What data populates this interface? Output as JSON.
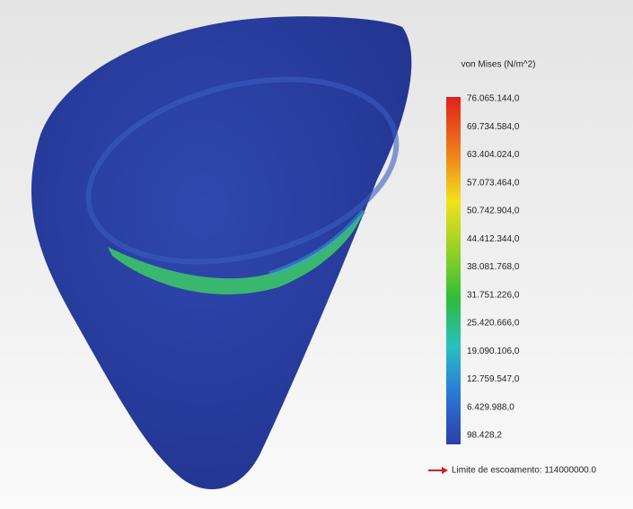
{
  "legend": {
    "title": "von Mises (N/m^2)",
    "labels": [
      "76.065.144,0",
      "69.734.584,0",
      "63.404.024,0",
      "57.073.464,0",
      "50.742.904,0",
      "44.412.344,0",
      "38.081.768,0",
      "31.751.226,0",
      "25.420.666,0",
      "19.090.106,0",
      "12.759.547,0",
      "6.429.988,0",
      "98.428,2"
    ]
  },
  "yield": {
    "label": "Limite de escoamento: 114000000.0"
  }
}
